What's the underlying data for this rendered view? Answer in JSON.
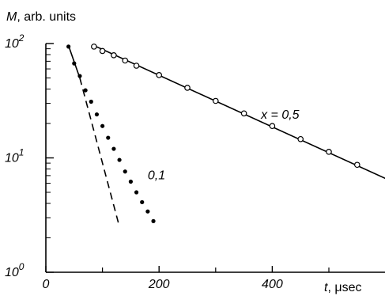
{
  "chart_data": {
    "type": "scatter",
    "ylabel_var": "M",
    "ylabel_rest": ", arb. units",
    "xlabel_var": "t",
    "xlabel_rest": ", μsec",
    "x_ticks": [
      {
        "value": 0,
        "label": "0"
      },
      {
        "value": 200,
        "label": "200"
      },
      {
        "value": 400,
        "label": "400"
      }
    ],
    "y_ticks": [
      {
        "value": 1,
        "base": "10",
        "exp": "0"
      },
      {
        "value": 10,
        "base": "10",
        "exp": "1"
      },
      {
        "value": 100,
        "base": "10",
        "exp": "2"
      }
    ],
    "xlim": [
      0,
      600
    ],
    "ylim": [
      1,
      100
    ],
    "yscale": "log",
    "grid": false,
    "series": [
      {
        "name": "x = 0,5",
        "marker": "open-circle",
        "x": [
          85,
          100,
          120,
          140,
          160,
          200,
          250,
          300,
          350,
          400,
          450,
          500,
          550,
          600
        ],
        "y": [
          94,
          86,
          79,
          71,
          64,
          53,
          41,
          31.5,
          24.5,
          19,
          14.6,
          11.3,
          8.7,
          6.7
        ]
      },
      {
        "name": "0,1",
        "marker": "filled-circle",
        "x": [
          40,
          50,
          60,
          70,
          80,
          90,
          100,
          110,
          120,
          130,
          140,
          150,
          160,
          170,
          180,
          190
        ],
        "y": [
          94,
          67,
          52,
          39,
          31,
          24,
          19,
          15,
          12,
          9.6,
          7.6,
          6.2,
          5,
          4.1,
          3.4,
          2.8
        ]
      }
    ],
    "fit_lines": [
      {
        "style": "solid",
        "x": [
          85,
          600
        ],
        "y": [
          96,
          6.6
        ]
      },
      {
        "style": "solid",
        "x": [
          40,
          60
        ],
        "y": [
          96,
          50
        ]
      },
      {
        "style": "dashed",
        "x": [
          60,
          130
        ],
        "y": [
          50,
          2.5
        ]
      }
    ],
    "annotations": [
      {
        "text": "x = 0,5",
        "x": 380,
        "y": 22
      },
      {
        "text": "0,1",
        "x": 180,
        "y": 6.5
      }
    ]
  }
}
